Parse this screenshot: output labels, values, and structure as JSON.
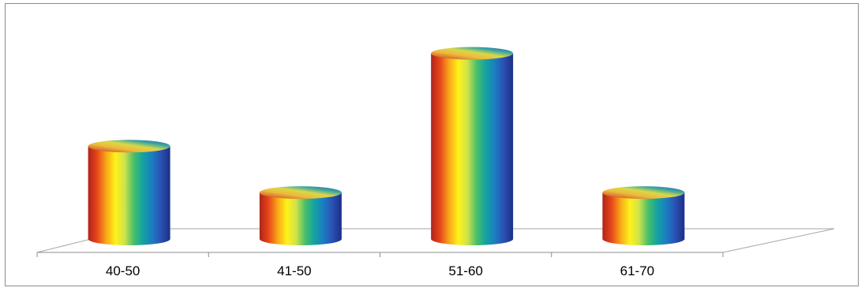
{
  "chart_data": {
    "type": "bar",
    "style": "3d-cylinder",
    "categories": [
      "40-50",
      "41-50",
      "51-60",
      "61-70"
    ],
    "values": [
      12,
      6,
      24,
      6
    ],
    "ylim": [
      0,
      26
    ],
    "grid": false,
    "legend": "none",
    "title": "",
    "xlabel": "",
    "ylabel": "",
    "gradient_colors": [
      "#b0231a",
      "#e8471a",
      "#f8a818",
      "#fff21a",
      "#cfe34a",
      "#49bf6a",
      "#13a3a0",
      "#1b7dc2",
      "#2a50b2",
      "#1c2f86"
    ]
  }
}
